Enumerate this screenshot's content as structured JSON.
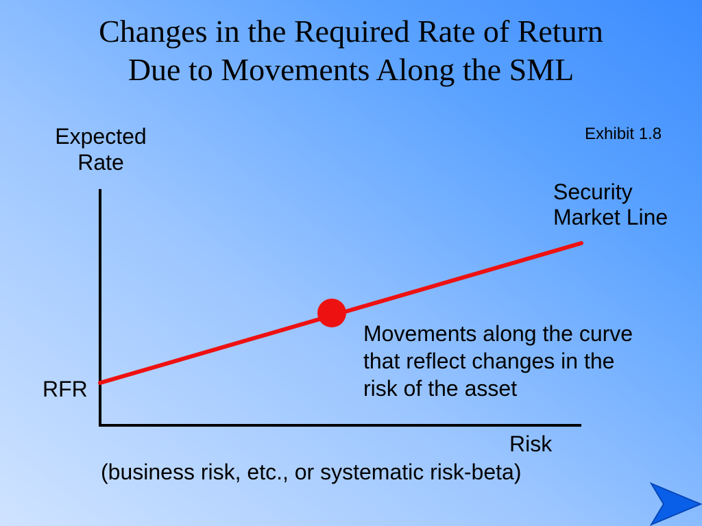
{
  "slide": {
    "title_lines": [
      "Changes in the Required Rate of Return",
      "Due to Movements Along the SML"
    ],
    "exhibit": "Exhibit 1.8",
    "next_icon": "arrow-right-icon"
  },
  "diagram": {
    "y_axis_label_lines": [
      "Expected",
      "Rate"
    ],
    "x_axis_label": "Risk",
    "x_axis_sublabel": "(business risk, etc., or systematic risk-beta)",
    "intercept_label": "RFR",
    "line_label_lines": [
      "Security",
      "Market Line"
    ],
    "annotation_lines": [
      "Movements along the curve",
      "that reflect changes in the",
      "risk of the asset"
    ],
    "line_color": "#ee1111",
    "point_color": "#ee1111",
    "axis_color": "#000000"
  }
}
